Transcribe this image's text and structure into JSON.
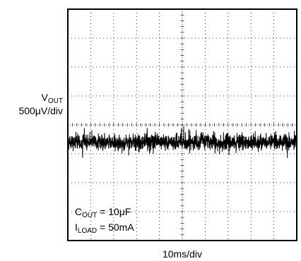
{
  "chart_data": {
    "type": "line",
    "title": "",
    "ylabel": {
      "main": "V",
      "sub": "OUT",
      "scale": "500μV/div"
    },
    "xlabel": "10ms/div",
    "divisions": {
      "x": 10,
      "y": 8
    },
    "grid": "dotted",
    "series": [
      {
        "description": "output voltage noise trace",
        "center_div": 4.6,
        "typical_peak_to_peak_div": 1.1,
        "max_peak_to_peak_div": 2.0
      }
    ],
    "annotations": [
      {
        "main": "C",
        "sub": "OUT",
        "rest": " = 10μF"
      },
      {
        "main": "I",
        "sub": "LOAD",
        "rest": " = 50mA"
      }
    ]
  }
}
